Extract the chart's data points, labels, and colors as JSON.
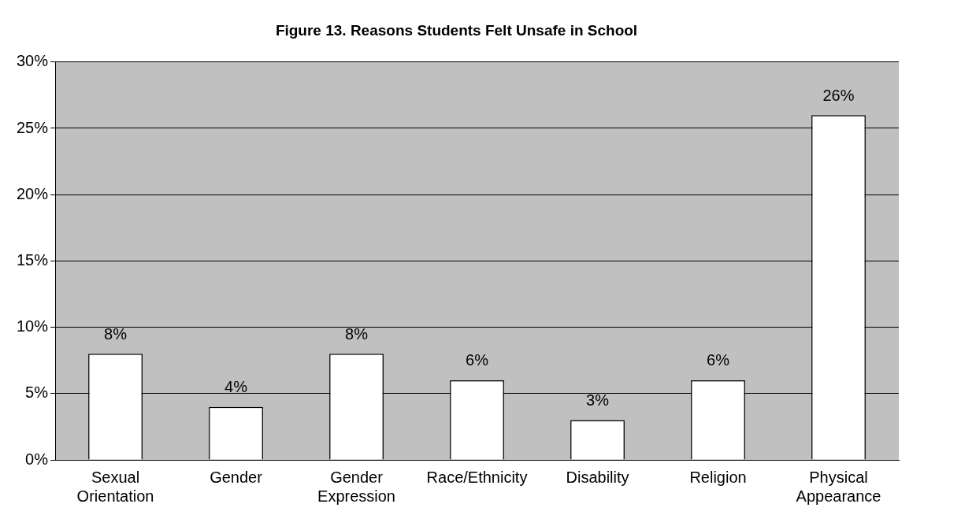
{
  "chart_data": {
    "type": "bar",
    "title": "Figure 13. Reasons Students Felt Unsafe in School",
    "categories": [
      "Sexual Orientation",
      "Gender",
      "Gender Expression",
      "Race/Ethnicity",
      "Disability",
      "Religion",
      "Physical Appearance"
    ],
    "values": [
      8,
      4,
      8,
      6,
      3,
      6,
      26
    ],
    "value_labels": [
      "8%",
      "4%",
      "8%",
      "6%",
      "3%",
      "6%",
      "26%"
    ],
    "color": "#ffffff",
    "ylim": [
      0,
      30
    ],
    "yticks": [
      {
        "value": 0,
        "label": "0%"
      },
      {
        "value": 5,
        "label": "5%"
      },
      {
        "value": 10,
        "label": "10%"
      },
      {
        "value": 15,
        "label": "15%"
      },
      {
        "value": 20,
        "label": "20%"
      },
      {
        "value": 25,
        "label": "25%"
      },
      {
        "value": 30,
        "label": "30%"
      }
    ],
    "grid": "y",
    "legend": false
  }
}
